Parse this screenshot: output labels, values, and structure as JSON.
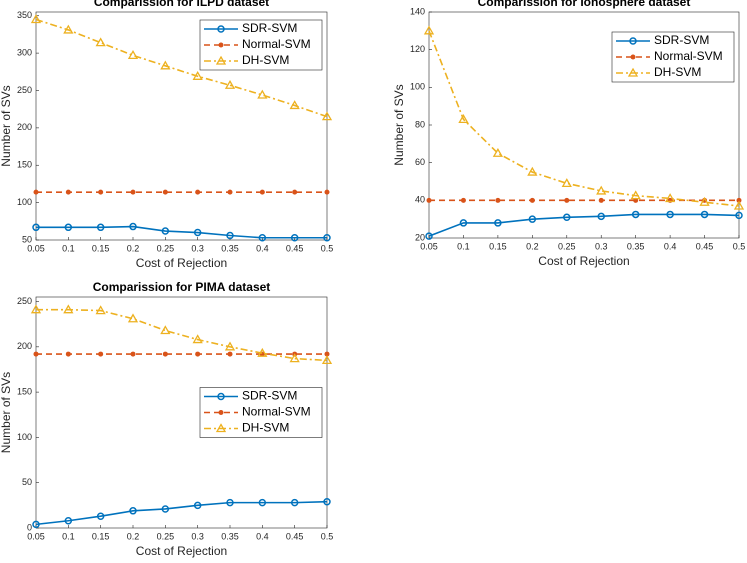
{
  "chart_data": [
    {
      "type": "line",
      "title": "Comparission for ILPD dataset",
      "xlabel": "Cost of Rejection",
      "ylabel": "Number of SVs",
      "x": [
        0.05,
        0.1,
        0.15,
        0.2,
        0.25,
        0.3,
        0.35,
        0.4,
        0.45,
        0.5
      ],
      "xlim": [
        0.05,
        0.5
      ],
      "xticks": [
        0.05,
        0.1,
        0.15,
        0.2,
        0.25,
        0.3,
        0.35,
        0.4,
        0.45,
        0.5
      ],
      "ylim": [
        50,
        355
      ],
      "yticks": [
        50,
        100,
        150,
        200,
        250,
        300,
        350
      ],
      "legend": "northeast",
      "series": [
        {
          "name": "SDR-SVM",
          "color": "#0072bd",
          "marker": "o",
          "linestyle": "solid",
          "values": [
            67,
            67,
            67,
            68,
            62,
            60,
            56,
            53,
            53,
            53
          ]
        },
        {
          "name": "Normal-SVM",
          "color": "#d95319",
          "marker": ".",
          "linestyle": "dashed",
          "values": [
            114,
            114,
            114,
            114,
            114,
            114,
            114,
            114,
            114,
            114
          ]
        },
        {
          "name": "DH-SVM",
          "color": "#edb120",
          "marker": "^",
          "linestyle": "dashdot",
          "values": [
            345,
            331,
            314,
            297,
            283,
            269,
            257,
            244,
            230,
            215
          ]
        }
      ]
    },
    {
      "type": "line",
      "title": "Comparission for Ionosphere dataset",
      "xlabel": "Cost of Rejection",
      "ylabel": "Number of SVs",
      "x": [
        0.05,
        0.1,
        0.15,
        0.2,
        0.25,
        0.3,
        0.35,
        0.4,
        0.45,
        0.5
      ],
      "xlim": [
        0.05,
        0.5
      ],
      "xticks": [
        0.05,
        0.1,
        0.15,
        0.2,
        0.25,
        0.3,
        0.35,
        0.4,
        0.45,
        0.5
      ],
      "ylim": [
        20,
        140
      ],
      "yticks": [
        20,
        40,
        60,
        80,
        100,
        120,
        140
      ],
      "legend": "northeast",
      "series": [
        {
          "name": "SDR-SVM",
          "color": "#0072bd",
          "marker": "o",
          "linestyle": "solid",
          "values": [
            21,
            28,
            28,
            30,
            31,
            31.5,
            32.5,
            32.5,
            32.5,
            32
          ]
        },
        {
          "name": "Normal-SVM",
          "color": "#d95319",
          "marker": ".",
          "linestyle": "dashed",
          "values": [
            40,
            40,
            40,
            40,
            40,
            40,
            40,
            40,
            40,
            40
          ]
        },
        {
          "name": "DH-SVM",
          "color": "#edb120",
          "marker": "^",
          "linestyle": "dashdot",
          "values": [
            130,
            83,
            65,
            55,
            49,
            45,
            42.5,
            41,
            39,
            37
          ]
        }
      ]
    },
    {
      "type": "line",
      "title": "Comparission for PIMA dataset",
      "xlabel": "Cost of Rejection",
      "ylabel": "Number of SVs",
      "x": [
        0.05,
        0.1,
        0.15,
        0.2,
        0.25,
        0.3,
        0.35,
        0.4,
        0.45,
        0.5
      ],
      "xlim": [
        0.05,
        0.5
      ],
      "xticks": [
        0.05,
        0.1,
        0.15,
        0.2,
        0.25,
        0.3,
        0.35,
        0.4,
        0.45,
        0.5
      ],
      "ylim": [
        0,
        255
      ],
      "yticks": [
        0,
        50,
        100,
        150,
        200,
        250
      ],
      "legend": "east",
      "series": [
        {
          "name": "SDR-SVM",
          "color": "#0072bd",
          "marker": "o",
          "linestyle": "solid",
          "values": [
            4,
            8,
            13,
            19,
            21,
            25,
            28,
            28,
            28,
            29
          ]
        },
        {
          "name": "Normal-SVM",
          "color": "#d95319",
          "marker": ".",
          "linestyle": "dashed",
          "values": [
            192,
            192,
            192,
            192,
            192,
            192,
            192,
            192,
            192,
            192
          ]
        },
        {
          "name": "DH-SVM",
          "color": "#edb120",
          "marker": "^",
          "linestyle": "dashdot",
          "values": [
            241,
            241,
            240,
            231,
            218,
            208,
            200,
            193,
            187,
            185
          ]
        }
      ]
    }
  ]
}
